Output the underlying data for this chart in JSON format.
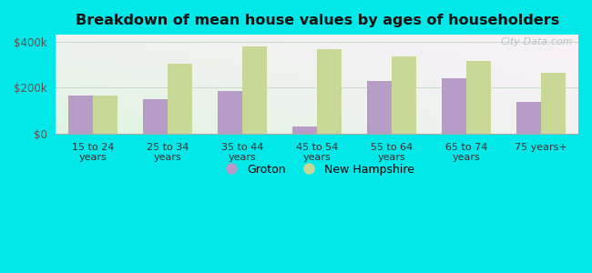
{
  "title": "Breakdown of mean house values by ages of householders",
  "categories": [
    "15 to 24\nyears",
    "25 to 34\nyears",
    "35 to 44\nyears",
    "45 to 54\nyears",
    "55 to 64\nyears",
    "65 to 74\nyears",
    "75 years+"
  ],
  "groton_values": [
    165000,
    150000,
    185000,
    32000,
    228000,
    242000,
    140000
  ],
  "nh_values": [
    168000,
    305000,
    380000,
    368000,
    335000,
    318000,
    265000
  ],
  "groton_color": "#b89cc8",
  "nh_color": "#c8d896",
  "outer_background": "#00e8e8",
  "ylim": [
    0,
    430000
  ],
  "yticks": [
    0,
    200000,
    400000
  ],
  "ytick_labels": [
    "$0",
    "$200k",
    "$400k"
  ],
  "legend_labels": [
    "Groton",
    "New Hampshire"
  ],
  "watermark": "City-Data.com"
}
